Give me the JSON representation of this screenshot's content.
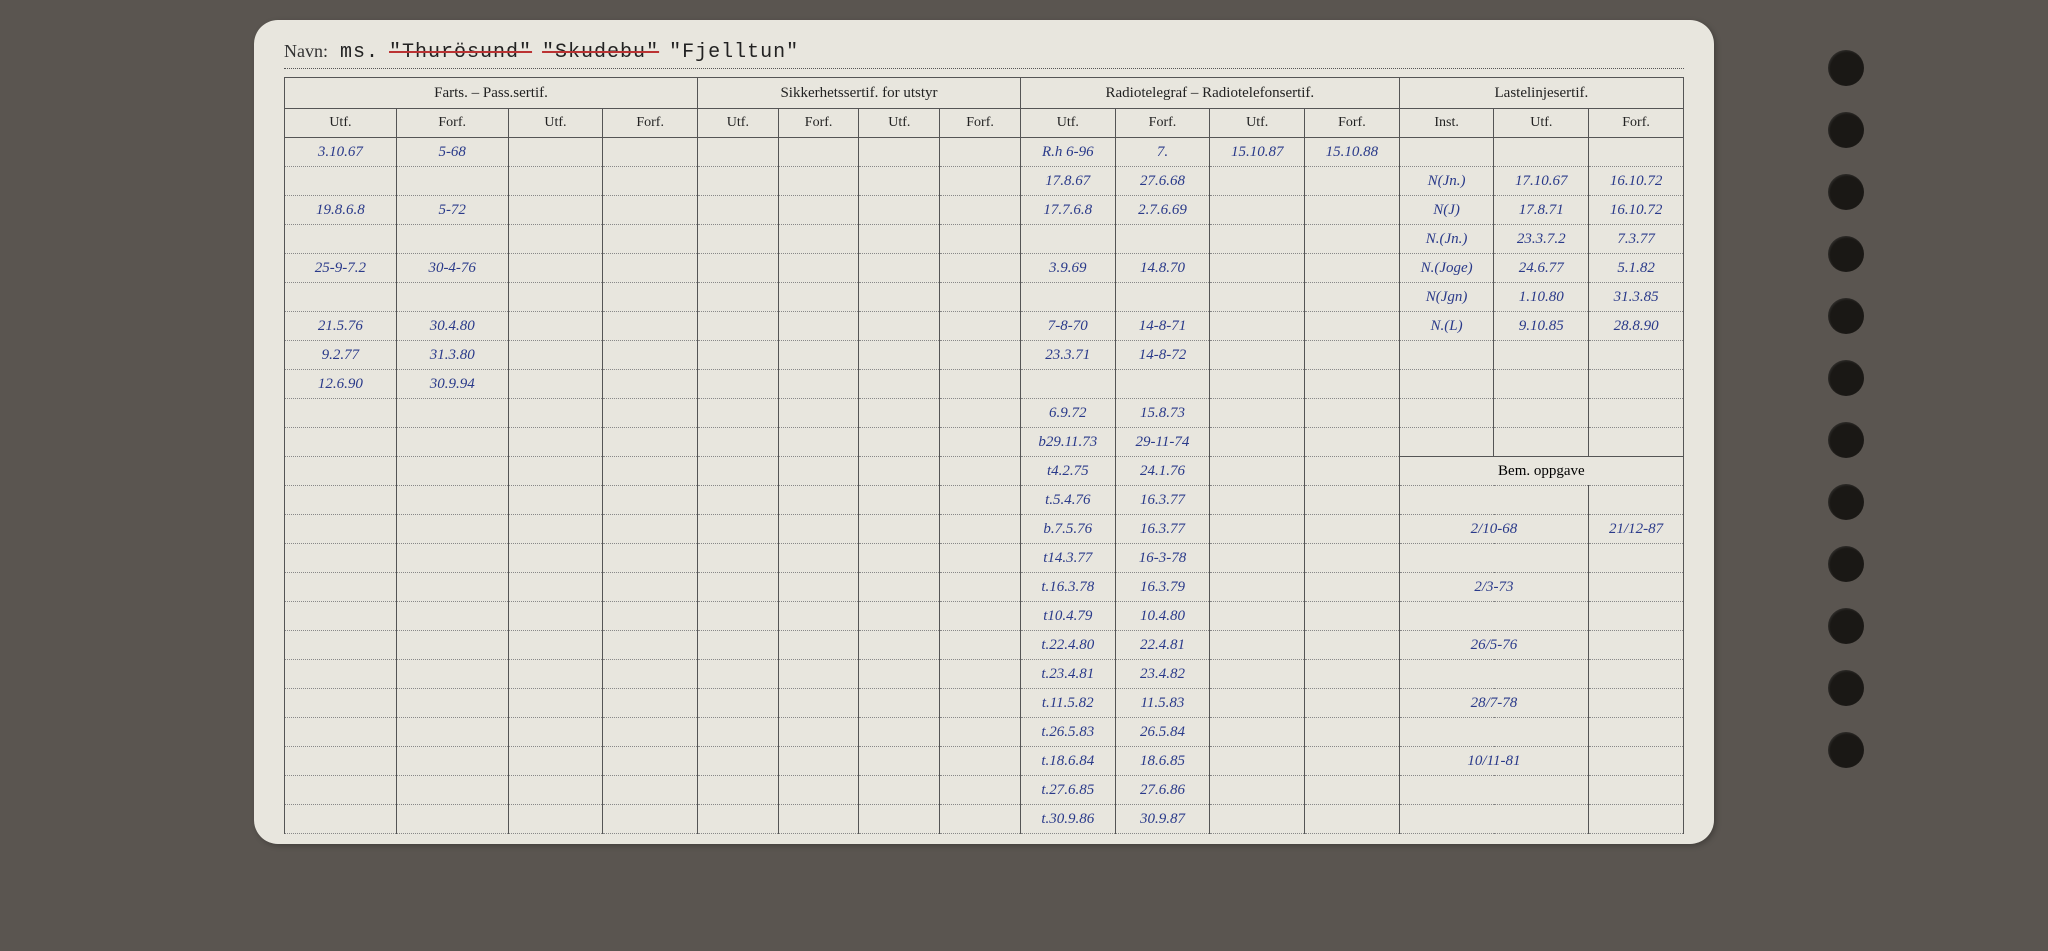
{
  "title": {
    "label": "Navn:",
    "prefix": "ms.",
    "name1": "\"Thurösund\"",
    "name2": "\"Skudebu\"",
    "name3": "\"Fjelltun\""
  },
  "headers": {
    "farts": "Farts. – Pass.sertif.",
    "sikk": "Sikkerhetssertif. for utstyr",
    "radio": "Radiotelegraf – Radiotelefonsertif.",
    "laste": "Lastelinjesertif.",
    "utf": "Utf.",
    "forf": "Forf.",
    "inst": "Inst.",
    "bem": "Bem. oppgave"
  },
  "rows": [
    {
      "f1": "3.10.67",
      "f2": "5-68",
      "r1": "R.h 6-96",
      "r2": "7.",
      "r3": "15.10.87",
      "r4": "15.10.88",
      "l1": "",
      "l2": "",
      "l3": ""
    },
    {
      "f1": "",
      "f2": "",
      "r1": "17.8.67",
      "r2": "27.6.68",
      "r3": "",
      "r4": "",
      "l1": "N(Jn.)",
      "l2": "17.10.67",
      "l3": "16.10.72"
    },
    {
      "f1": "19.8.6.8",
      "f2": "5-72",
      "r1": "17.7.6.8",
      "r2": "2.7.6.69",
      "r3": "",
      "r4": "",
      "l1": "N(J)",
      "l2": "17.8.71",
      "l3": "16.10.72"
    },
    {
      "f1": "",
      "f2": "",
      "r1": "",
      "r2": "",
      "r3": "",
      "r4": "",
      "l1": "N.(Jn.)",
      "l2": "23.3.7.2",
      "l3": "7.3.77"
    },
    {
      "f1": "25-9-7.2",
      "f2": "30-4-76",
      "r1": "3.9.69",
      "r2": "14.8.70",
      "r3": "",
      "r4": "",
      "l1": "N.(Joge)",
      "l2": "24.6.77",
      "l3": "5.1.82"
    },
    {
      "f1": "",
      "f2": "",
      "r1": "",
      "r2": "",
      "r3": "",
      "r4": "",
      "l1": "N(Jgn)",
      "l2": "1.10.80",
      "l3": "31.3.85"
    },
    {
      "f1": "21.5.76",
      "f2": "30.4.80",
      "r1": "7-8-70",
      "r2": "14-8-71",
      "r3": "",
      "r4": "",
      "l1": "N.(L)",
      "l2": "9.10.85",
      "l3": "28.8.90"
    },
    {
      "f1": "9.2.77",
      "f2": "31.3.80",
      "r1": "23.3.71",
      "r2": "14-8-72",
      "r3": "",
      "r4": "",
      "l1": "",
      "l2": "",
      "l3": ""
    },
    {
      "f1": "12.6.90",
      "f2": "30.9.94",
      "r1": "",
      "r2": "",
      "r3": "",
      "r4": "",
      "l1": "",
      "l2": "",
      "l3": ""
    },
    {
      "f1": "",
      "f2": "",
      "r1": "6.9.72",
      "r2": "15.8.73",
      "r3": "",
      "r4": "",
      "l1": "",
      "l2": "",
      "l3": ""
    },
    {
      "f1": "",
      "f2": "",
      "r1": "b29.11.73",
      "r2": "29-11-74",
      "r3": "",
      "r4": "",
      "l1": "",
      "l2": "",
      "l3": ""
    },
    {
      "f1": "",
      "f2": "",
      "r1": "t4.2.75",
      "r2": "24.1.76",
      "r3": "",
      "r4": "",
      "bemrow": true
    },
    {
      "f1": "",
      "f2": "",
      "r1": "t.5.4.76",
      "r2": "16.3.77",
      "r3": "",
      "r4": "",
      "b1": "",
      "b2": ""
    },
    {
      "f1": "",
      "f2": "",
      "r1": "b.7.5.76",
      "r2": "16.3.77",
      "r3": "",
      "r4": "",
      "b1": "2/10-68",
      "b2": "21/12-87"
    },
    {
      "f1": "",
      "f2": "",
      "r1": "t14.3.77",
      "r2": "16-3-78",
      "r3": "",
      "r4": "",
      "b1": "",
      "b2": ""
    },
    {
      "f1": "",
      "f2": "",
      "r1": "t.16.3.78",
      "r2": "16.3.79",
      "r3": "",
      "r4": "",
      "b1": "2/3-73",
      "b2": ""
    },
    {
      "f1": "",
      "f2": "",
      "r1": "t10.4.79",
      "r2": "10.4.80",
      "r3": "",
      "r4": "",
      "b1": "",
      "b2": ""
    },
    {
      "f1": "",
      "f2": "",
      "r1": "t.22.4.80",
      "r2": "22.4.81",
      "r3": "",
      "r4": "",
      "b1": "26/5-76",
      "b2": ""
    },
    {
      "f1": "",
      "f2": "",
      "r1": "t.23.4.81",
      "r2": "23.4.82",
      "r3": "",
      "r4": "",
      "b1": "",
      "b2": ""
    },
    {
      "f1": "",
      "f2": "",
      "r1": "t.11.5.82",
      "r2": "11.5.83",
      "r3": "",
      "r4": "",
      "b1": "28/7-78",
      "b2": ""
    },
    {
      "f1": "",
      "f2": "",
      "r1": "t.26.5.83",
      "r2": "26.5.84",
      "r3": "",
      "r4": "",
      "b1": "",
      "b2": ""
    },
    {
      "f1": "",
      "f2": "",
      "r1": "t.18.6.84",
      "r2": "18.6.85",
      "r3": "",
      "r4": "",
      "b1": "10/11-81",
      "b2": ""
    },
    {
      "f1": "",
      "f2": "",
      "r1": "t.27.6.85",
      "r2": "27.6.86",
      "r3": "",
      "r4": "",
      "b1": "",
      "b2": ""
    },
    {
      "f1": "",
      "f2": "",
      "r1": "t.30.9.86",
      "r2": "30.9.87",
      "r3": "",
      "r4": "",
      "b1": "",
      "b2": ""
    }
  ],
  "style": {
    "card_bg": "#e8e6de",
    "border_color": "#555",
    "handwriting_color": "#2a3a8a",
    "page_bg": "#5a5550"
  }
}
